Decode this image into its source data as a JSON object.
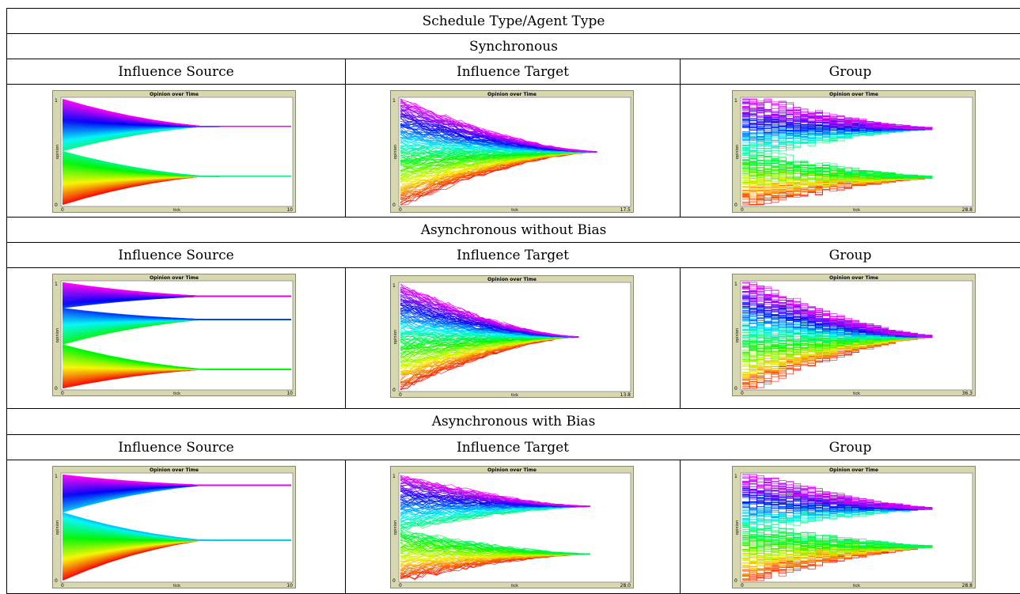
{
  "table": {
    "title": "Schedule Type/Agent Type",
    "col_headers": [
      "Influence Source",
      "Influence Target",
      "Group"
    ],
    "sections": [
      {
        "label": "Synchronous",
        "plots": [
          {
            "title": "Opinion over Time",
            "xlabel": "tick",
            "ylabel": "opinion",
            "y_top": "1",
            "y_bottom": "0",
            "x_min": "0",
            "x_max": "10"
          },
          {
            "title": "Opinion over Time",
            "xlabel": "tick",
            "ylabel": "opinion",
            "y_top": "1",
            "y_bottom": "0",
            "x_min": "0",
            "x_max": "17.5"
          },
          {
            "title": "Opinion over Time",
            "xlabel": "tick",
            "ylabel": "opinion",
            "y_top": "1",
            "y_bottom": "0",
            "x_min": "0",
            "x_max": "28.8"
          }
        ]
      },
      {
        "label": "Asynchronous without Bias",
        "plots": [
          {
            "title": "Opinion over Time",
            "xlabel": "tick",
            "ylabel": "opinion",
            "y_top": "1",
            "y_bottom": "0",
            "x_min": "0",
            "x_max": "10"
          },
          {
            "title": "Opinion over Time",
            "xlabel": "tick",
            "ylabel": "opinion",
            "y_top": "1",
            "y_bottom": "0",
            "x_min": "0",
            "x_max": "13.8"
          },
          {
            "title": "Opinion over Time",
            "xlabel": "tick",
            "ylabel": "opinion",
            "y_top": "1",
            "y_bottom": "0",
            "x_min": "0",
            "x_max": "36.3"
          }
        ]
      },
      {
        "label": "Asynchronous with Bias",
        "plots": [
          {
            "title": "Opinion over Time",
            "xlabel": "tick",
            "ylabel": "opinion",
            "y_top": "1",
            "y_bottom": "0",
            "x_min": "0",
            "x_max": "10"
          },
          {
            "title": "Opinion over Time",
            "xlabel": "tick",
            "ylabel": "opinion",
            "y_top": "1",
            "y_bottom": "0",
            "x_min": "0",
            "x_max": "28.0"
          },
          {
            "title": "Opinion over Time",
            "xlabel": "tick",
            "ylabel": "opinion",
            "y_top": "1",
            "y_bottom": "0",
            "x_min": "0",
            "x_max": "28.8"
          }
        ]
      }
    ]
  },
  "chart_data": [
    {
      "type": "line",
      "title": "Opinion over Time",
      "xlabel": "tick",
      "ylabel": "opinion",
      "xlim": [
        0,
        10
      ],
      "ylim": [
        0,
        1
      ],
      "grid": false,
      "color_scheme": "rainbow by initial opinion",
      "clusters": [
        {
          "y": 0.74
        },
        {
          "y": 0.27
        }
      ]
    },
    {
      "type": "line",
      "title": "Opinion over Time",
      "xlabel": "tick",
      "ylabel": "opinion",
      "xlim": [
        0,
        17.5
      ],
      "ylim": [
        0,
        1
      ],
      "grid": false,
      "color_scheme": "rainbow by initial opinion",
      "clusters": [
        {
          "y": 0.5
        }
      ]
    },
    {
      "type": "line",
      "title": "Opinion over Time",
      "xlabel": "tick",
      "ylabel": "opinion",
      "xlim": [
        0,
        28.8
      ],
      "ylim": [
        0,
        1
      ],
      "grid": false,
      "color_scheme": "rainbow by initial opinion",
      "clusters": [
        {
          "y": 0.72
        },
        {
          "y": 0.26
        }
      ]
    },
    {
      "type": "line",
      "title": "Opinion over Time",
      "xlabel": "tick",
      "ylabel": "opinion",
      "xlim": [
        0,
        10
      ],
      "ylim": [
        0,
        1
      ],
      "grid": false,
      "color_scheme": "rainbow by initial opinion",
      "clusters": [
        {
          "y": 0.87
        },
        {
          "y": 0.65
        },
        {
          "y": 0.18
        }
      ]
    },
    {
      "type": "line",
      "title": "Opinion over Time",
      "xlabel": "tick",
      "ylabel": "opinion",
      "xlim": [
        0,
        13.8
      ],
      "ylim": [
        0,
        1
      ],
      "grid": false,
      "color_scheme": "rainbow by initial opinion",
      "clusters": [
        {
          "y": 0.5
        }
      ]
    },
    {
      "type": "line",
      "title": "Opinion over Time",
      "xlabel": "tick",
      "ylabel": "opinion",
      "xlim": [
        0,
        36.3
      ],
      "ylim": [
        0,
        1
      ],
      "grid": false,
      "color_scheme": "rainbow by initial opinion",
      "clusters": [
        {
          "y": 0.49
        }
      ]
    },
    {
      "type": "line",
      "title": "Opinion over Time",
      "xlabel": "tick",
      "ylabel": "opinion",
      "xlim": [
        0,
        10
      ],
      "ylim": [
        0,
        1
      ],
      "grid": false,
      "color_scheme": "rainbow by initial opinion",
      "clusters": [
        {
          "y": 0.9
        },
        {
          "y": 0.38
        }
      ]
    },
    {
      "type": "line",
      "title": "Opinion over Time",
      "xlabel": "tick",
      "ylabel": "opinion",
      "xlim": [
        0,
        28.0
      ],
      "ylim": [
        0,
        1
      ],
      "grid": false,
      "color_scheme": "rainbow by initial opinion",
      "clusters": [
        {
          "y": 0.7
        },
        {
          "y": 0.25
        }
      ]
    },
    {
      "type": "line",
      "title": "Opinion over Time",
      "xlabel": "tick",
      "ylabel": "opinion",
      "xlim": [
        0,
        28.8
      ],
      "ylim": [
        0,
        1
      ],
      "grid": false,
      "color_scheme": "rainbow by initial opinion",
      "clusters": [
        {
          "y": 0.68
        },
        {
          "y": 0.32
        }
      ]
    }
  ]
}
